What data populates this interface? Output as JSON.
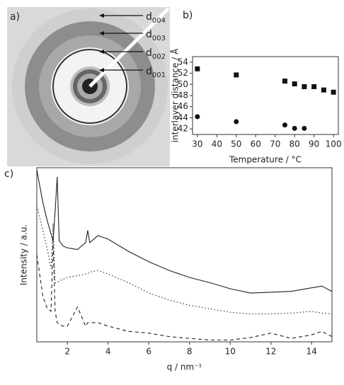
{
  "image_panel": {
    "label": "a)",
    "annotations": [
      {
        "letter": "d",
        "subscript": "004"
      },
      {
        "letter": "d",
        "subscript": "003"
      },
      {
        "letter": "d",
        "subscript": "002"
      },
      {
        "letter": "d",
        "subscript": "001"
      }
    ]
  },
  "chart_data": [
    {
      "type": "scatter",
      "panel_label": "b)",
      "xlabel": "Temperature / °C",
      "ylabel": "interlayer distance / Å",
      "xlim": [
        27.5,
        102.5
      ],
      "xticks": [
        30,
        40,
        50,
        60,
        70,
        80,
        90,
        100
      ],
      "ylim": [
        41,
        55
      ],
      "yticks": [
        42,
        44,
        46,
        48,
        50,
        52,
        54
      ],
      "series": [
        {
          "marker": "square",
          "color": "#111111",
          "x": [
            30,
            50,
            75,
            80,
            85,
            90,
            95,
            100
          ],
          "values": [
            52.8,
            51.7,
            50.6,
            50.1,
            49.6,
            49.6,
            49.0,
            48.6
          ]
        },
        {
          "marker": "circle",
          "color": "#111111",
          "x": [
            30,
            50,
            75,
            80,
            85
          ],
          "values": [
            44.2,
            43.3,
            42.7,
            42.1,
            42.1
          ]
        }
      ]
    },
    {
      "type": "line",
      "panel_label": "c)",
      "xlabel": "q / nm⁻¹",
      "ylabel": "Intensity / a.u.",
      "xlim": [
        0.5,
        15
      ],
      "xticks": [
        2,
        4,
        6,
        8,
        10,
        12,
        14
      ],
      "ylim": [
        0,
        100
      ],
      "x": [
        0.5,
        0.8,
        1.0,
        1.2,
        1.3,
        1.4,
        1.5,
        1.6,
        1.8,
        2.0,
        2.5,
        2.9,
        3.0,
        3.1,
        3.5,
        4,
        5,
        6,
        7,
        8,
        9,
        10,
        11,
        12,
        13,
        14,
        14.5,
        15
      ],
      "series": [
        {
          "dash": "solid",
          "color": "#222222",
          "values": [
            98.8,
            80,
            70,
            62,
            58,
            75,
            94.7,
            58,
            55,
            54,
            53,
            57,
            64,
            57,
            61,
            59,
            52,
            46,
            41,
            37,
            34,
            30.5,
            28,
            28.5,
            29,
            31,
            32,
            29
          ]
        },
        {
          "dash": "dotted",
          "color": "#222222",
          "values": [
            78,
            64,
            54,
            42,
            68,
            34,
            34,
            35,
            36,
            37,
            38,
            39,
            39,
            40,
            41,
            39,
            34,
            28,
            24,
            21,
            19,
            17,
            16,
            16,
            16.5,
            17.5,
            16.5,
            16
          ]
        },
        {
          "dash": "dashed",
          "color": "#222222",
          "values": [
            50,
            26,
            19.5,
            17.5,
            58,
            17.5,
            11,
            10,
            9,
            9,
            20,
            9,
            11,
            11,
            11,
            9,
            6,
            5,
            3,
            2,
            1,
            1,
            2.5,
            5,
            2,
            4,
            6,
            3
          ]
        }
      ]
    }
  ]
}
